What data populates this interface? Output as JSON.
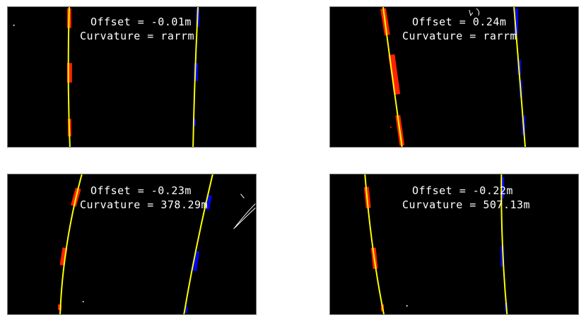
{
  "panels": [
    {
      "offset_text": "Offset = -0.01m",
      "curvature_text": "Curvature = rarrm"
    },
    {
      "offset_text": "Offset = 0.24m",
      "curvature_text": "Curvature = rarrm"
    },
    {
      "offset_text": "Offset = -0.23m",
      "curvature_text": "Curvature = 378.29m"
    },
    {
      "offset_text": "Offset = -0.22m",
      "curvature_text": "Curvature = 507.13m"
    }
  ],
  "colors": {
    "background": "#000000",
    "fit_line": "#ffff00",
    "left_lane_pixels": "#ff2200",
    "right_lane_pixels": "#0000ff",
    "text": "#ffffff"
  }
}
